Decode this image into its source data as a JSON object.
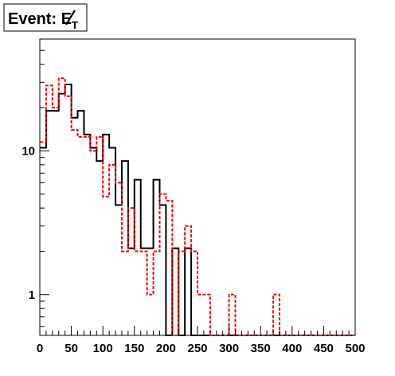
{
  "title": {
    "prefix": "Event: ",
    "symbol": "E",
    "subscript": "T"
  },
  "chart_data": {
    "type": "histogram",
    "x_axis": {
      "range": [
        0,
        500
      ],
      "tick_labels": [
        "0",
        "50",
        "100",
        "150",
        "200",
        "250",
        "300",
        "350",
        "400",
        "450",
        "500"
      ],
      "tick_values": [
        0,
        50,
        100,
        150,
        200,
        250,
        300,
        350,
        400,
        450,
        500
      ]
    },
    "y_axis": {
      "scale": "log",
      "range": [
        0.52,
        60
      ],
      "tick_labels": [
        "1",
        "10"
      ],
      "tick_values": [
        1,
        10
      ]
    },
    "bin_width": 10,
    "series": [
      {
        "style": "solid",
        "color": "#000000",
        "bin_edges_start": 0,
        "values": [
          10.5,
          19,
          19,
          25,
          29,
          17,
          19,
          13,
          10.5,
          8.5,
          13,
          10.5,
          4.2,
          8.5,
          2.1,
          6.3,
          2.1,
          2.1,
          6.3,
          4.2,
          0,
          2.1,
          0,
          2.1,
          0,
          0,
          0,
          0,
          0,
          0,
          0,
          0,
          0,
          0,
          0,
          0,
          0,
          0,
          0,
          0,
          0,
          0,
          0,
          0,
          0,
          0,
          0,
          0,
          0,
          0
        ]
      },
      {
        "style": "dashed",
        "color": "#ff0000",
        "bin_edges_start": 0,
        "values": [
          11.5,
          28.5,
          20,
          32,
          24,
          14,
          12.5,
          12.5,
          10,
          12.5,
          4.8,
          8,
          6,
          2,
          4,
          2,
          2,
          1,
          2,
          5,
          4.5,
          0.52,
          2,
          3,
          2,
          1,
          1,
          0.52,
          0.52,
          0.52,
          1,
          0.52,
          0.52,
          0.52,
          0.52,
          0.52,
          0.52,
          1,
          0.52,
          0.52,
          0.52,
          0.52,
          0.52,
          0.52,
          0.52,
          0.52,
          0.52,
          0.52,
          0.52,
          0.52
        ]
      }
    ],
    "grid": false,
    "legend": "none"
  }
}
